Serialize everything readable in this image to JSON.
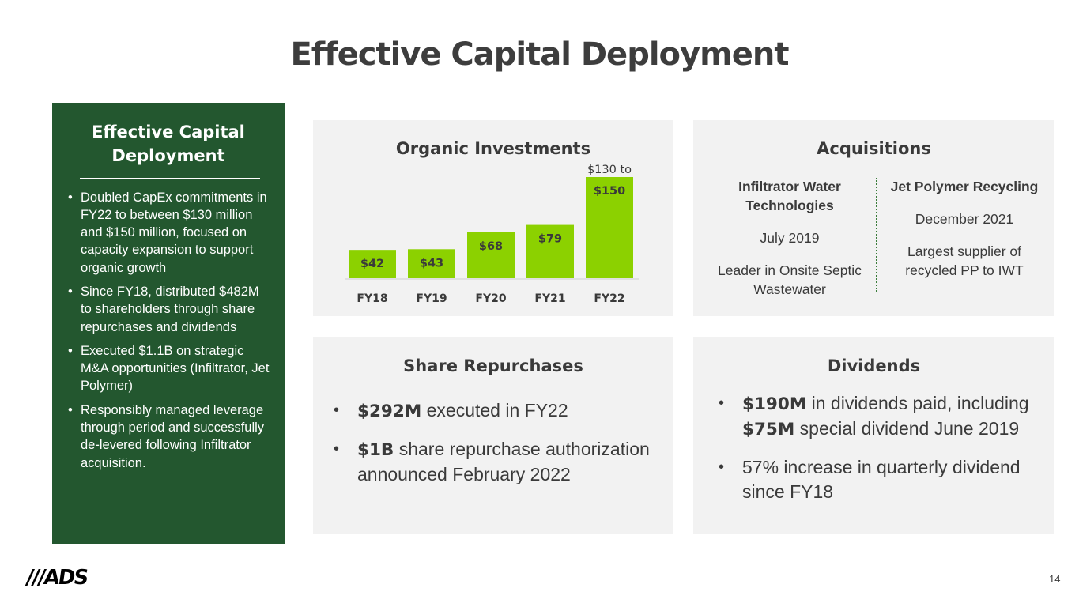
{
  "title": "Effective Capital Deployment",
  "sidebar": {
    "title": "Effective Capital Deployment",
    "bullets": [
      "Doubled CapEx commitments in FY22 to between $130 million and $150 million, focused on capacity expansion to support organic growth",
      "Since FY18, distributed $482M to shareholders through share repurchases and dividends",
      "Executed $1.1B on strategic M&A opportunities (Infiltrator, Jet Polymer)",
      "Responsibly managed leverage through period and successfully de-levered following Infiltrator acquisition."
    ],
    "bullet_glyph": "•",
    "background_color": "#23572f"
  },
  "organic": {
    "title": "Organic Investments"
  },
  "chart_data": {
    "type": "bar",
    "title": "Organic Investments",
    "categories": [
      "FY18",
      "FY19",
      "FY20",
      "FY21",
      "FY22"
    ],
    "values": [
      42,
      43,
      68,
      79,
      150
    ],
    "data_labels": [
      "$42",
      "$43",
      "$68",
      "$79",
      "$150"
    ],
    "annotation": "$130 to",
    "bar_color": "#8cd100",
    "ylim": [
      0,
      150
    ],
    "grid": false,
    "legend": "none"
  },
  "acquisitions": {
    "title": "Acquisitions",
    "items": [
      {
        "name": "Infiltrator Water Technologies",
        "date": "July 2019",
        "description": "Leader in Onsite Septic Wastewater"
      },
      {
        "name": "Jet Polymer Recycling",
        "date": "December 2021",
        "description": "Largest supplier of recycled PP to IWT"
      }
    ],
    "divider_color": "#3b7d3b"
  },
  "share_repurchases": {
    "title": "Share Repurchases",
    "items": [
      {
        "bold": "$292M",
        "text": " executed in FY22"
      },
      {
        "bold": "$1B",
        "text": " share repurchase authorization announced February 2022"
      }
    ]
  },
  "dividends": {
    "title": "Dividends",
    "item1": {
      "bold1": "$190M",
      "text1": " in dividends paid, including ",
      "bold2": "$75M",
      "text2": " special dividend June 2019"
    },
    "item2": {
      "text": "57% increase in quarterly dividend since FY18"
    }
  },
  "logo": "///ADS",
  "page_number": "14"
}
